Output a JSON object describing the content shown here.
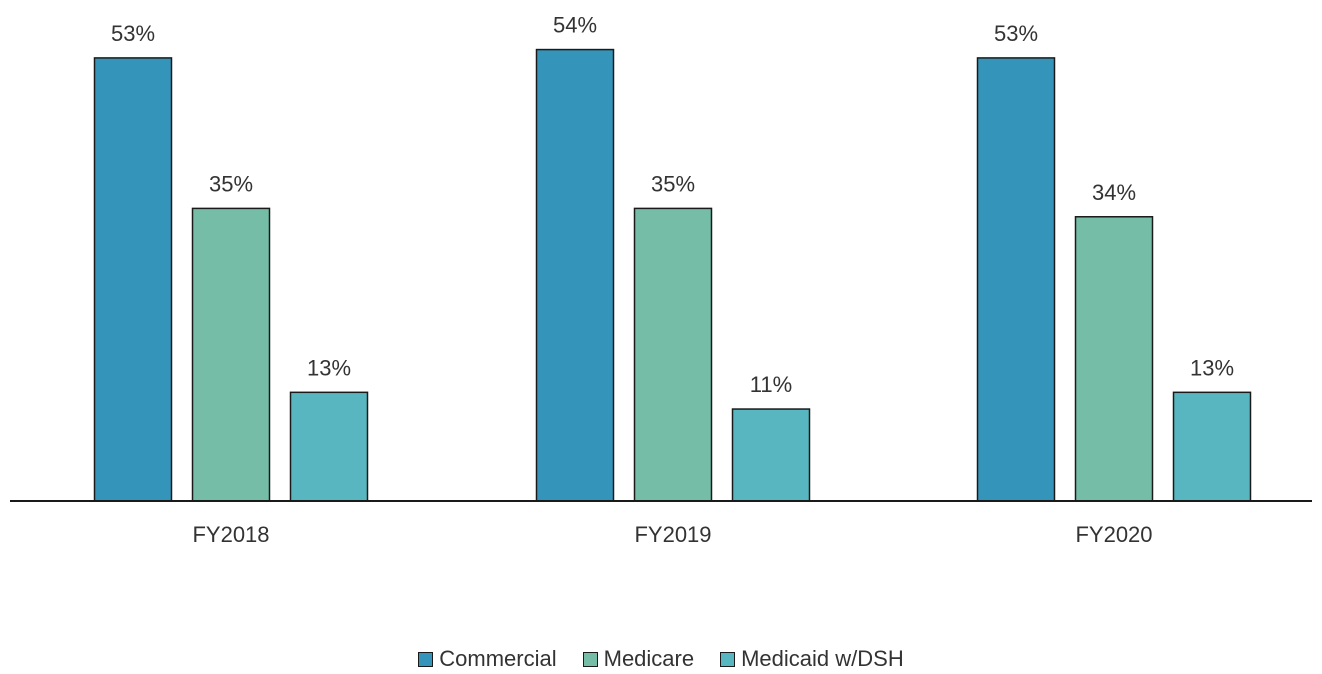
{
  "chart_data": {
    "type": "bar",
    "categories": [
      "FY2018",
      "FY2019",
      "FY2020"
    ],
    "series": [
      {
        "name": "Commercial",
        "values": [
          53,
          54,
          53
        ],
        "labels": [
          "53%",
          "54%",
          "53%"
        ],
        "color": "#3494BA"
      },
      {
        "name": "Medicare",
        "values": [
          35,
          35,
          34
        ],
        "labels": [
          "35%",
          "35%",
          "34%"
        ],
        "color": "#75BDA7"
      },
      {
        "name": "Medicaid w/DSH",
        "values": [
          13,
          11,
          13
        ],
        "labels": [
          "13%",
          "11%",
          "13%"
        ],
        "color": "#58B6C0"
      }
    ],
    "ylim": [
      0,
      60
    ],
    "grid": false,
    "legend_position": "bottom"
  }
}
